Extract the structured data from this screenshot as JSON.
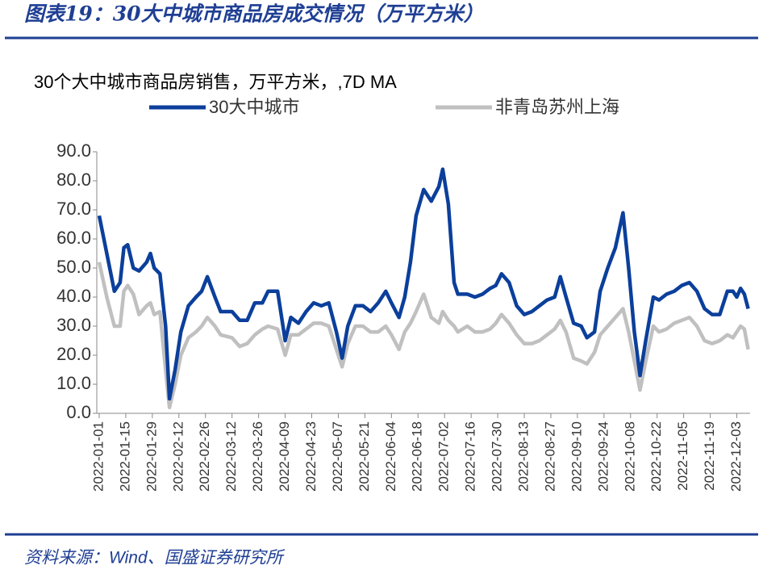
{
  "header": {
    "title": "图表19：30大中城市商品房成交情况（万平方米）"
  },
  "footer": {
    "source": "资料来源：Wind、国盛证券研究所"
  },
  "chart_data": {
    "type": "line",
    "title": "30个大中城市商品房销售，万平方米，,7D MA",
    "x": [
      "2022-01-01",
      "2022-01-05",
      "2022-01-09",
      "2022-01-12",
      "2022-01-14",
      "2022-01-16",
      "2022-01-19",
      "2022-01-22",
      "2022-01-26",
      "2022-01-28",
      "2022-01-30",
      "2022-02-02",
      "2022-02-05",
      "2022-02-07",
      "2022-02-10",
      "2022-02-13",
      "2022-02-17",
      "2022-02-21",
      "2022-02-24",
      "2022-02-27",
      "2022-03-03",
      "2022-03-06",
      "2022-03-12",
      "2022-03-16",
      "2022-03-20",
      "2022-03-24",
      "2022-03-28",
      "2022-03-31",
      "2022-04-05",
      "2022-04-09",
      "2022-04-12",
      "2022-04-16",
      "2022-04-20",
      "2022-04-24",
      "2022-04-28",
      "2022-05-02",
      "2022-05-06",
      "2022-05-09",
      "2022-05-12",
      "2022-05-16",
      "2022-05-20",
      "2022-05-24",
      "2022-05-28",
      "2022-06-01",
      "2022-06-04",
      "2022-06-08",
      "2022-06-11",
      "2022-06-14",
      "2022-06-17",
      "2022-06-21",
      "2022-06-25",
      "2022-06-29",
      "2022-07-01",
      "2022-07-04",
      "2022-07-07",
      "2022-07-09",
      "2022-07-14",
      "2022-07-18",
      "2022-07-22",
      "2022-07-26",
      "2022-07-29",
      "2022-08-01",
      "2022-08-05",
      "2022-08-09",
      "2022-08-13",
      "2022-08-17",
      "2022-08-21",
      "2022-08-25",
      "2022-08-29",
      "2022-09-01",
      "2022-09-04",
      "2022-09-08",
      "2022-09-12",
      "2022-09-15",
      "2022-09-19",
      "2022-09-22",
      "2022-09-26",
      "2022-09-30",
      "2022-10-04",
      "2022-10-07",
      "2022-10-10",
      "2022-10-13",
      "2022-10-16",
      "2022-10-20",
      "2022-10-23",
      "2022-10-27",
      "2022-10-31",
      "2022-11-04",
      "2022-11-08",
      "2022-11-12",
      "2022-11-16",
      "2022-11-20",
      "2022-11-24",
      "2022-11-28",
      "2022-12-01",
      "2022-12-03",
      "2022-12-05",
      "2022-12-07",
      "2022-12-09"
    ],
    "series": [
      {
        "name": "30大中城市",
        "color": "#0b3f9b",
        "values": [
          68,
          55,
          42,
          45,
          57,
          58,
          50,
          49,
          52,
          55,
          50,
          48,
          30,
          5,
          15,
          28,
          37,
          40,
          42,
          47,
          40,
          35,
          35,
          32,
          32,
          38,
          38,
          42,
          42,
          25,
          33,
          31,
          35,
          38,
          37,
          38,
          28,
          19,
          30,
          37,
          37,
          35,
          38,
          42,
          38,
          33,
          40,
          52,
          68,
          77,
          73,
          78,
          84,
          72,
          45,
          41,
          41,
          40,
          41,
          43,
          44,
          48,
          45,
          37,
          34,
          35,
          37,
          39,
          40,
          47,
          40,
          31,
          30,
          26,
          28,
          42,
          50,
          57,
          69,
          50,
          28,
          13,
          25,
          40,
          39,
          41,
          42,
          44,
          45,
          42,
          36,
          34,
          34,
          42,
          42,
          40,
          43,
          41,
          36
        ]
      },
      {
        "name": "非青岛苏州上海",
        "color": "#c0c0c0",
        "values": [
          52,
          40,
          30,
          30,
          42,
          44,
          41,
          34,
          37,
          38,
          34,
          35,
          15,
          2,
          10,
          20,
          26,
          28,
          30,
          33,
          30,
          27,
          26,
          23,
          24,
          27,
          29,
          30,
          29,
          20,
          27,
          27,
          29,
          31,
          31,
          30,
          22,
          16,
          24,
          30,
          30,
          28,
          28,
          30,
          27,
          22,
          28,
          31,
          35,
          41,
          33,
          31,
          35,
          32,
          30,
          28,
          30,
          28,
          28,
          29,
          31,
          34,
          31,
          27,
          24,
          24,
          25,
          27,
          29,
          32,
          28,
          19,
          18,
          17,
          21,
          27,
          30,
          33,
          36,
          28,
          18,
          8,
          18,
          30,
          28,
          29,
          31,
          32,
          33,
          30,
          25,
          24,
          25,
          27,
          26,
          28,
          30,
          29,
          22
        ]
      }
    ],
    "xlim": [
      "2022-01-01",
      "2022-12-10"
    ],
    "xticks": [
      "2022-01-01",
      "2022-01-15",
      "2022-01-29",
      "2022-02-12",
      "2022-02-26",
      "2022-03-12",
      "2022-03-26",
      "2022-04-09",
      "2022-04-23",
      "2022-05-07",
      "2022-05-21",
      "2022-06-04",
      "2022-06-18",
      "2022-07-02",
      "2022-07-16",
      "2022-07-30",
      "2022-08-13",
      "2022-08-27",
      "2022-09-10",
      "2022-09-24",
      "2022-10-08",
      "2022-10-22",
      "2022-11-05",
      "2022-11-19",
      "2022-12-03"
    ],
    "ylim": [
      0,
      90
    ],
    "yticks": [
      {
        "value": 0,
        "label": "0.0"
      },
      {
        "value": 10,
        "label": "10.0"
      },
      {
        "value": 20,
        "label": "20.0"
      },
      {
        "value": 30,
        "label": "30.0"
      },
      {
        "value": 40,
        "label": "40.0"
      },
      {
        "value": 50,
        "label": "50.0"
      },
      {
        "value": 60,
        "label": "60.0"
      },
      {
        "value": 70,
        "label": "70.0"
      },
      {
        "value": 80,
        "label": "80.0"
      },
      {
        "value": 90,
        "label": "90.0"
      }
    ],
    "grid": false
  }
}
